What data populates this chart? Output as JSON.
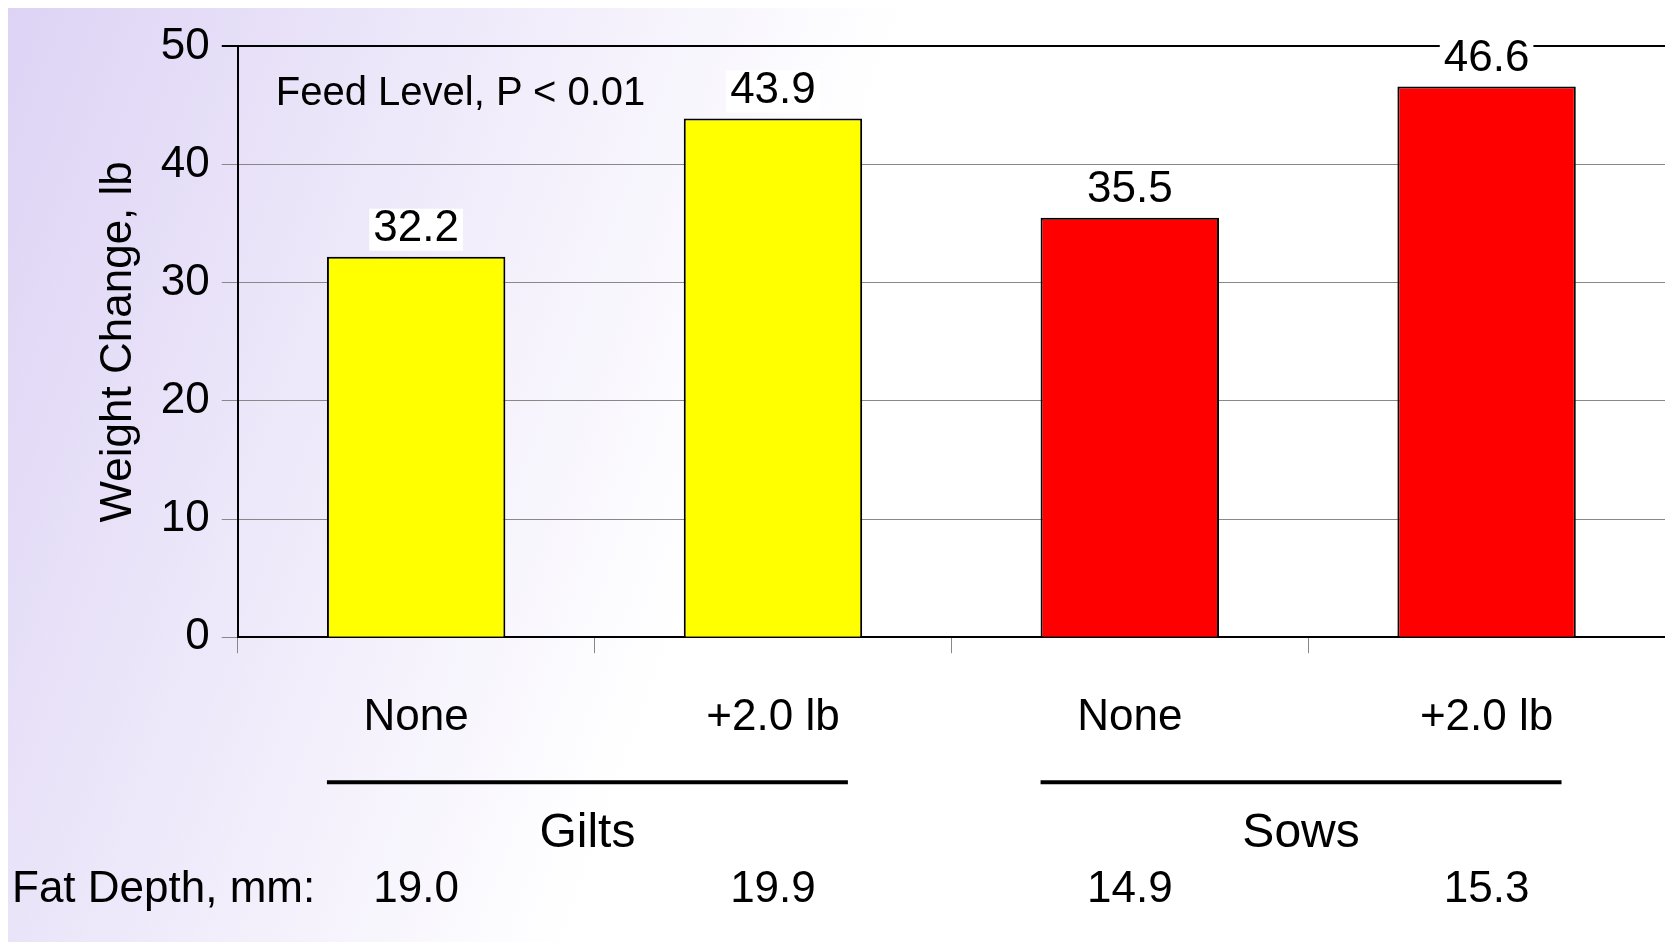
{
  "chart_data": {
    "type": "bar",
    "ylabel": "Weight Change, lb",
    "categories": [
      "None",
      "+2.0 lb",
      "None",
      "+2.0 lb"
    ],
    "values": [
      32.2,
      43.9,
      35.5,
      46.6
    ],
    "colors": [
      "#ffff00",
      "#ffff00",
      "#ff0000",
      "#ff0000"
    ],
    "data_labels": true,
    "ylim": [
      0,
      50
    ],
    "yticks": [
      0,
      10,
      20,
      30,
      40,
      50
    ],
    "grid": "y",
    "legend": false,
    "annotations": [
      "Feed Level, P < 0.01",
      "Gilts",
      "Sows",
      "Fat Depth, mm:",
      "19.0",
      "19.9",
      "14.9",
      "15.3"
    ]
  }
}
